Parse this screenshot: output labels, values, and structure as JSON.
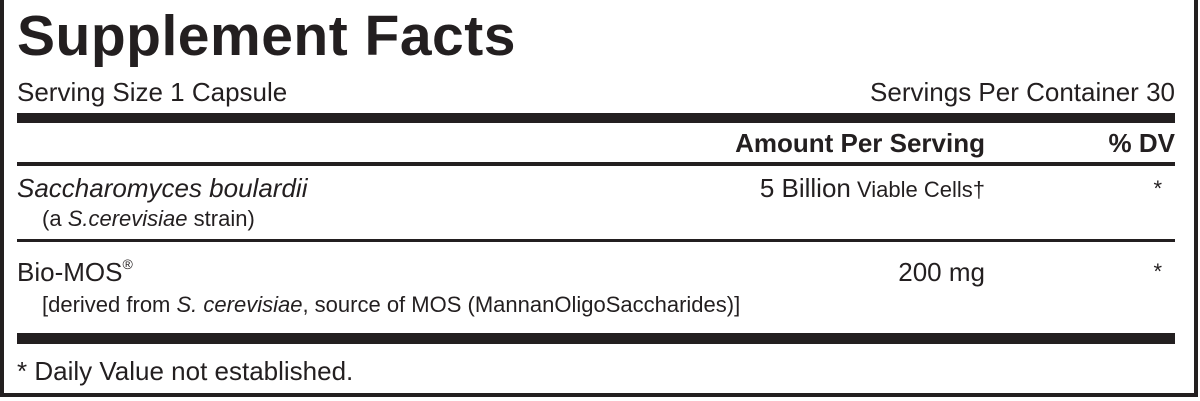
{
  "title": "Supplement Facts",
  "serving_size": "Serving Size 1 Capsule",
  "servings_per_container": "Servings Per Container 30",
  "header": {
    "amount": "Amount Per Serving",
    "dv": "% DV"
  },
  "rows": [
    {
      "name": "Saccharomyces boulardii",
      "sub_prefix": "(a ",
      "sub_italic": "S.cerevisiae",
      "sub_suffix": " strain)",
      "amount_main": "5 Billion",
      "amount_unit": " Viable Cells†",
      "dv": "*"
    },
    {
      "name": "Bio-MOS",
      "name_mark": "®",
      "sub_prefix": "[derived from ",
      "sub_italic": "S. cerevisiae",
      "sub_suffix": ", source of MOS (MannanOligoSaccharides)]",
      "amount_main": "200 mg",
      "dv": "*"
    }
  ],
  "footnote": "* Daily Value not established.",
  "colors": {
    "ink": "#231f20",
    "background": "#ffffff"
  }
}
